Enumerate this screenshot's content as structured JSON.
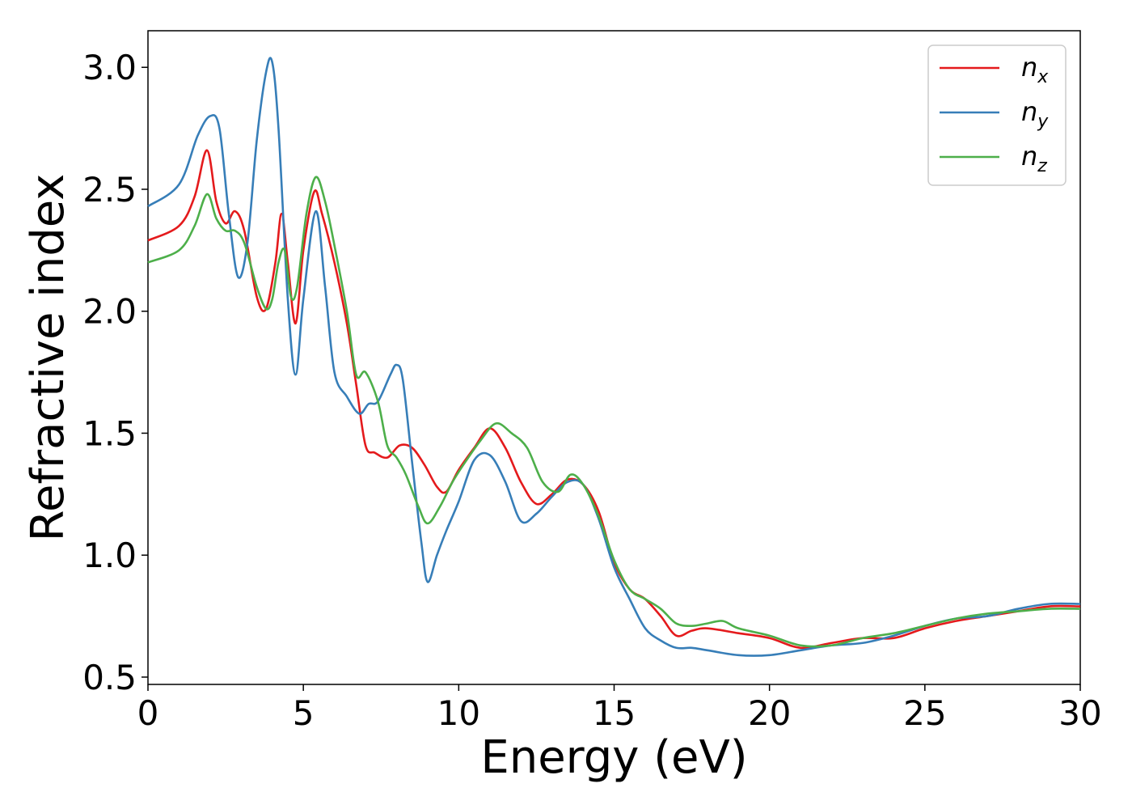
{
  "chart_data": {
    "type": "line",
    "xlabel": "Energy (eV)",
    "ylabel": "Refractive index",
    "xlim": [
      0,
      30
    ],
    "ylim": [
      0.47,
      3.15
    ],
    "xticks": [
      "0",
      "5",
      "10",
      "15",
      "20",
      "25",
      "30"
    ],
    "yticks": [
      "0.5",
      "1.0",
      "1.5",
      "2.0",
      "2.5",
      "3.0"
    ],
    "grid": false,
    "legend_position": "top-right",
    "series": [
      {
        "name": "n_x",
        "label_main": "n",
        "label_sub": "x",
        "color": "#e41a1c",
        "x": [
          0,
          1,
          1.5,
          1.9,
          2.2,
          2.5,
          2.8,
          3.1,
          3.5,
          3.8,
          4.1,
          4.3,
          4.5,
          4.75,
          5.0,
          5.35,
          5.6,
          6.0,
          6.4,
          6.7,
          7.0,
          7.3,
          7.7,
          8.1,
          8.5,
          8.9,
          9.3,
          9.6,
          10.0,
          10.5,
          11.0,
          11.5,
          12.0,
          12.5,
          13.0,
          13.5,
          14.0,
          14.5,
          15.0,
          15.5,
          16.0,
          16.5,
          17.0,
          17.5,
          18.0,
          19.0,
          20.0,
          21.0,
          22.0,
          23.0,
          24.0,
          25.0,
          26.0,
          27.0,
          28.0,
          29.0,
          30.0
        ],
        "y": [
          2.29,
          2.35,
          2.47,
          2.66,
          2.45,
          2.36,
          2.41,
          2.33,
          2.06,
          2.01,
          2.2,
          2.4,
          2.2,
          1.95,
          2.25,
          2.49,
          2.4,
          2.2,
          1.95,
          1.7,
          1.45,
          1.42,
          1.4,
          1.45,
          1.44,
          1.37,
          1.28,
          1.26,
          1.35,
          1.44,
          1.52,
          1.44,
          1.3,
          1.21,
          1.25,
          1.31,
          1.29,
          1.18,
          0.97,
          0.86,
          0.82,
          0.75,
          0.67,
          0.69,
          0.7,
          0.68,
          0.66,
          0.62,
          0.64,
          0.66,
          0.66,
          0.7,
          0.73,
          0.75,
          0.77,
          0.79,
          0.79
        ]
      },
      {
        "name": "n_y",
        "label_main": "n",
        "label_sub": "y",
        "color": "#377eb8",
        "x": [
          0,
          1,
          1.6,
          2.0,
          2.3,
          2.6,
          2.9,
          3.2,
          3.5,
          3.8,
          4.0,
          4.2,
          4.5,
          4.75,
          5.0,
          5.4,
          5.7,
          6.0,
          6.4,
          6.8,
          7.1,
          7.4,
          7.8,
          8.0,
          8.2,
          8.5,
          8.8,
          9.0,
          9.3,
          9.6,
          10.0,
          10.5,
          11.0,
          11.5,
          12.0,
          12.5,
          13.0,
          13.5,
          14.0,
          14.5,
          15.0,
          15.5,
          16.0,
          16.5,
          17.0,
          17.5,
          18.0,
          19.0,
          20.0,
          21.0,
          22.0,
          23.0,
          24.0,
          25.0,
          26.0,
          27.0,
          28.0,
          29.0,
          30.0
        ],
        "y": [
          2.43,
          2.52,
          2.72,
          2.8,
          2.75,
          2.4,
          2.14,
          2.28,
          2.7,
          2.98,
          3.02,
          2.75,
          2.05,
          1.74,
          2.05,
          2.41,
          2.1,
          1.75,
          1.65,
          1.58,
          1.62,
          1.63,
          1.74,
          1.78,
          1.72,
          1.38,
          1.05,
          0.89,
          1.0,
          1.1,
          1.22,
          1.39,
          1.41,
          1.3,
          1.14,
          1.17,
          1.24,
          1.3,
          1.29,
          1.15,
          0.95,
          0.82,
          0.7,
          0.65,
          0.62,
          0.62,
          0.61,
          0.59,
          0.59,
          0.61,
          0.63,
          0.64,
          0.67,
          0.71,
          0.74,
          0.75,
          0.78,
          0.8,
          0.8
        ]
      },
      {
        "name": "n_z",
        "label_main": "n",
        "label_sub": "z",
        "color": "#4daf4a",
        "x": [
          0,
          1,
          1.5,
          1.9,
          2.2,
          2.5,
          2.8,
          3.1,
          3.5,
          3.8,
          4.0,
          4.2,
          4.4,
          4.6,
          4.8,
          5.1,
          5.4,
          5.7,
          6.0,
          6.4,
          6.7,
          7.0,
          7.4,
          7.7,
          8.0,
          8.3,
          8.7,
          9.0,
          9.4,
          9.8,
          10.2,
          10.7,
          11.2,
          11.7,
          12.2,
          12.7,
          13.2,
          13.6,
          14.0,
          14.5,
          15.0,
          15.5,
          16.0,
          16.5,
          17.0,
          17.5,
          18.0,
          18.5,
          19.0,
          20.0,
          21.0,
          22.0,
          23.0,
          24.0,
          25.0,
          26.0,
          27.0,
          28.0,
          29.0,
          30.0
        ],
        "y": [
          2.2,
          2.25,
          2.35,
          2.48,
          2.38,
          2.33,
          2.33,
          2.28,
          2.1,
          2.01,
          2.05,
          2.2,
          2.25,
          2.06,
          2.1,
          2.4,
          2.55,
          2.45,
          2.27,
          2.0,
          1.74,
          1.75,
          1.63,
          1.45,
          1.4,
          1.33,
          1.2,
          1.13,
          1.2,
          1.3,
          1.38,
          1.47,
          1.54,
          1.5,
          1.44,
          1.3,
          1.26,
          1.33,
          1.29,
          1.16,
          0.98,
          0.86,
          0.82,
          0.78,
          0.72,
          0.71,
          0.72,
          0.73,
          0.7,
          0.67,
          0.63,
          0.63,
          0.66,
          0.68,
          0.71,
          0.74,
          0.76,
          0.77,
          0.78,
          0.78
        ]
      }
    ]
  }
}
